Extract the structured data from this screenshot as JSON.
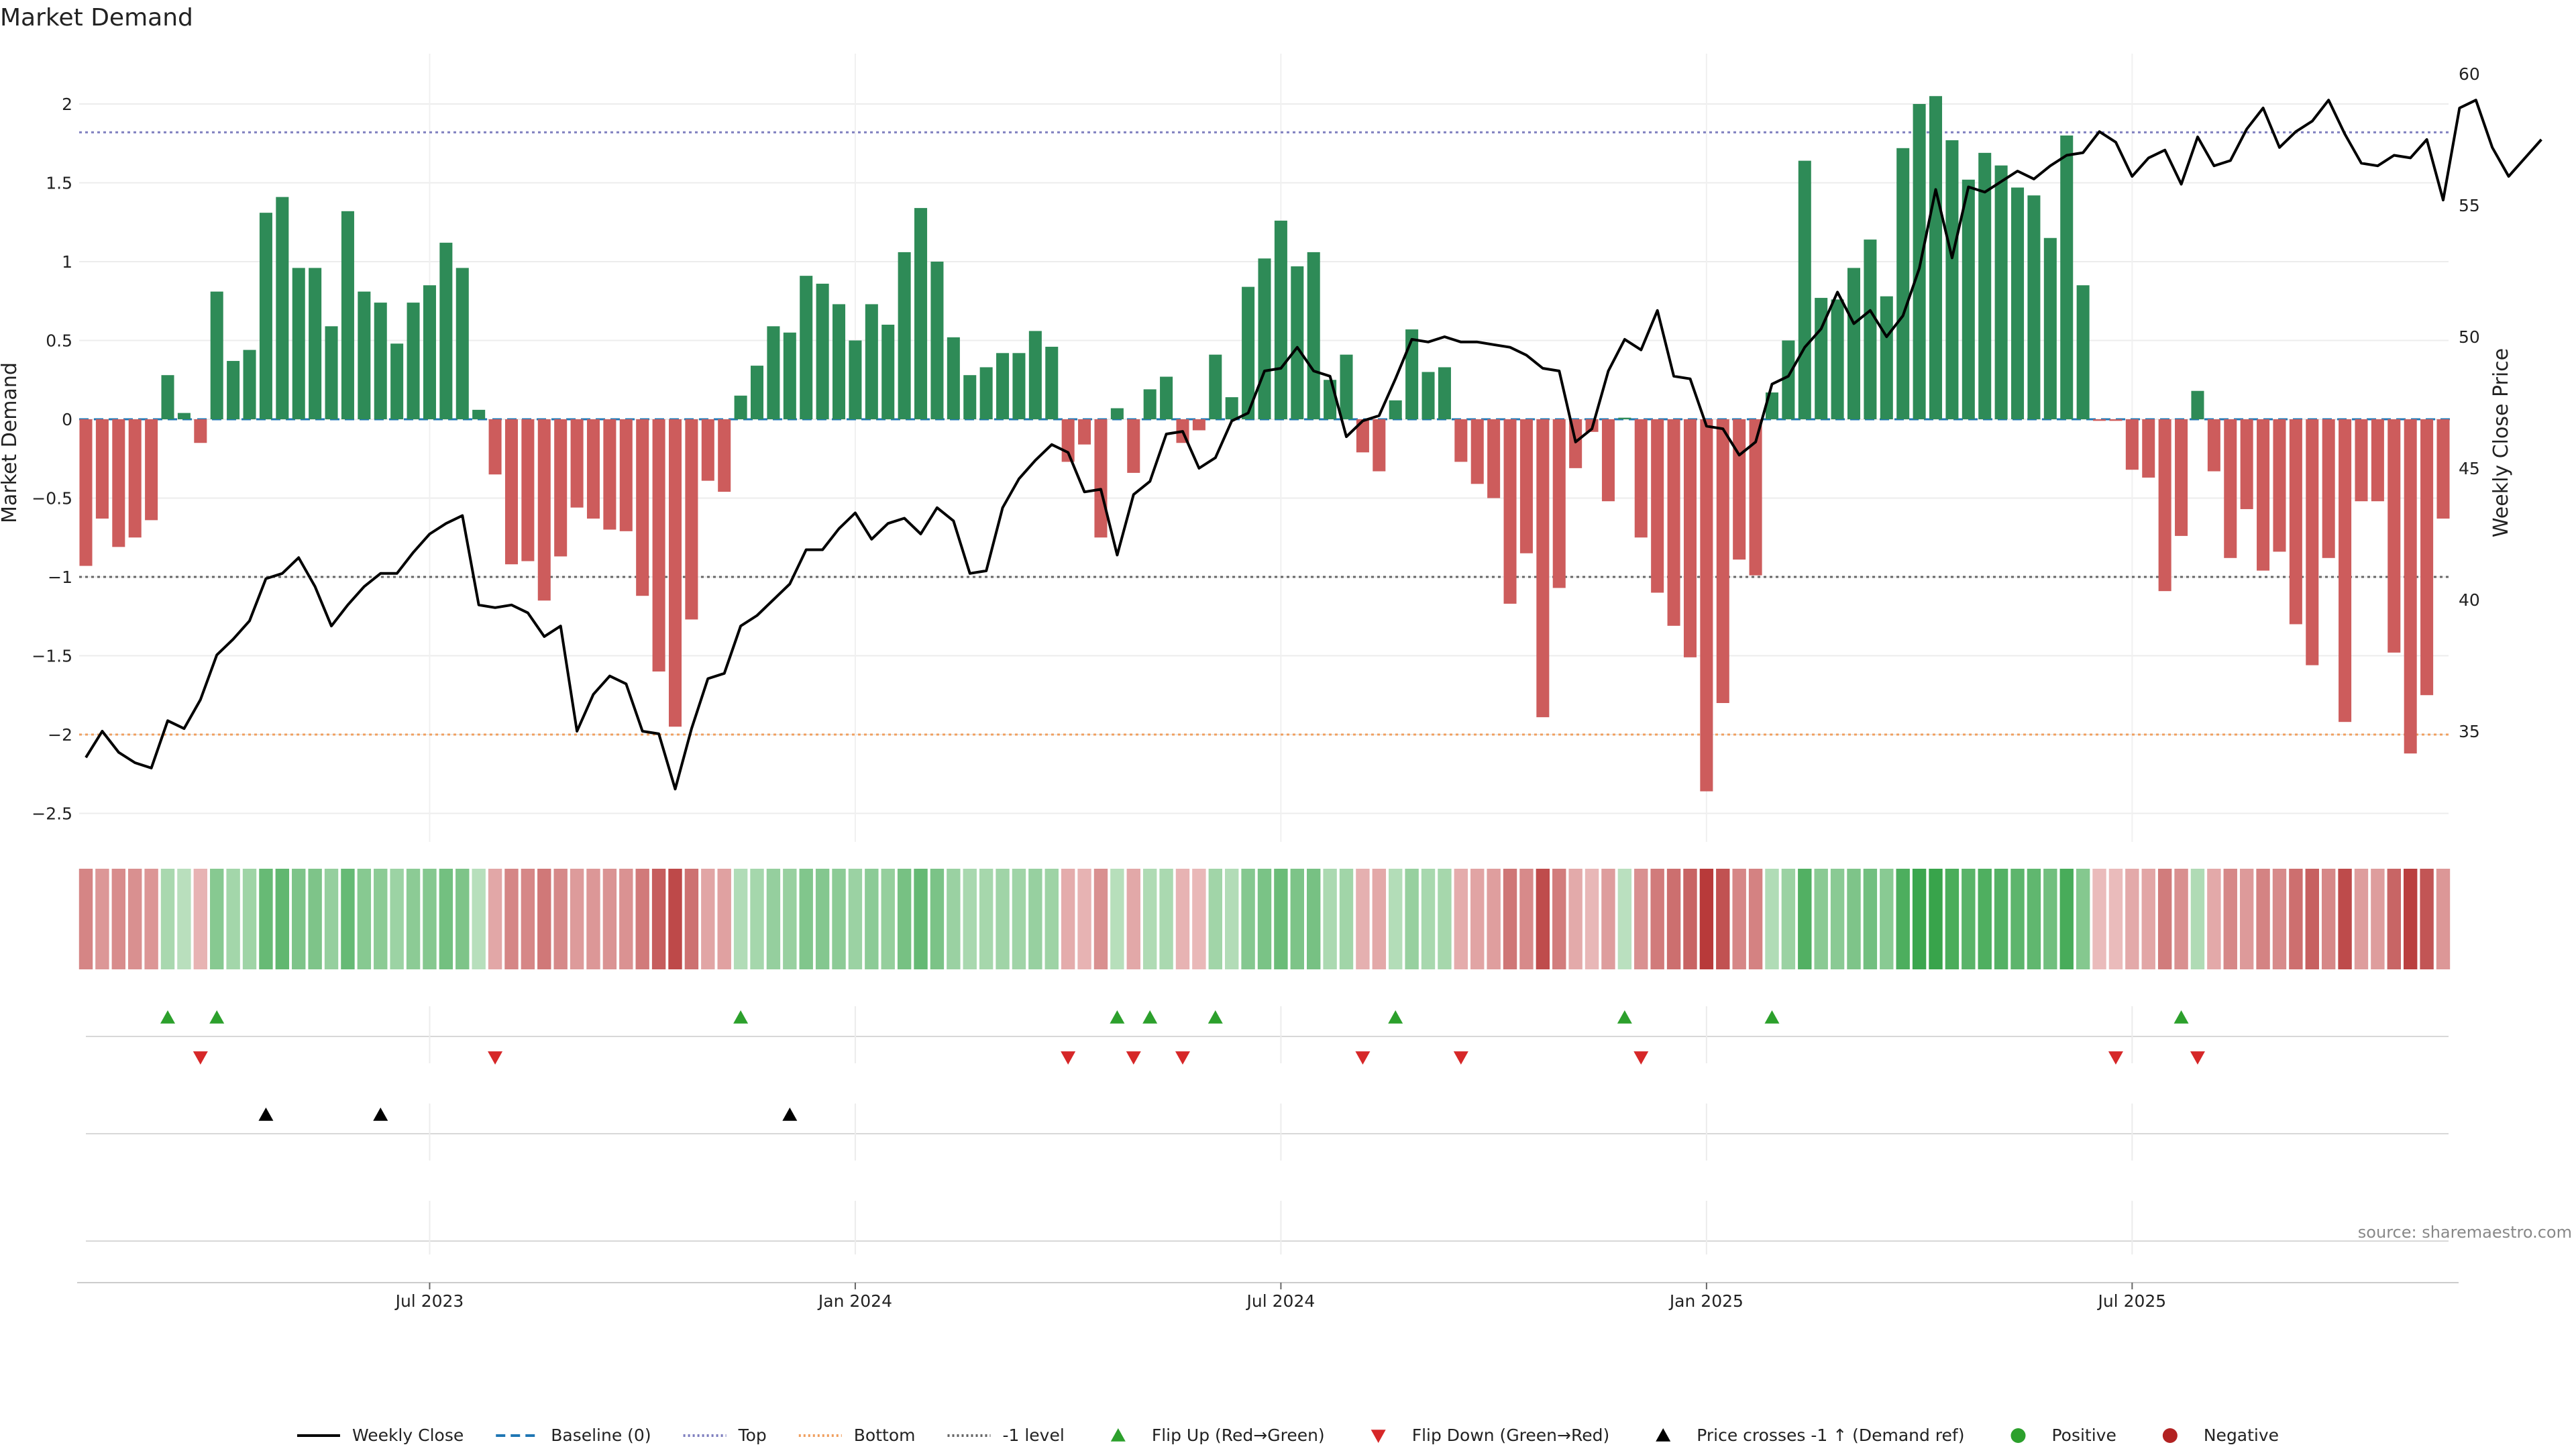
{
  "chart_data": {
    "type": "bar",
    "title": "Market Demand",
    "ylabel": "Market Demand",
    "y2label": "Weekly Close Price",
    "ylim": [
      -2.5,
      2.2
    ],
    "y2lim": [
      31.5,
      60
    ],
    "yticks": [
      2,
      1.5,
      1,
      0.5,
      0,
      -0.5,
      -1,
      -1.5,
      -2,
      -2.5
    ],
    "yticklabels": [
      "2",
      "1.5",
      "1",
      "0.5",
      "0",
      "−0.5",
      "−1",
      "−1.5",
      "−2",
      "−2.5"
    ],
    "y2ticks": [
      60,
      55,
      50,
      45,
      40,
      35
    ],
    "x_ticks": [
      {
        "label": "Jul 2023",
        "index": 21
      },
      {
        "label": "Jan 2024",
        "index": 47
      },
      {
        "label": "Jul 2024",
        "index": 73
      },
      {
        "label": "Jan 2025",
        "index": 99
      },
      {
        "label": "Jul 2025",
        "index": 125
      }
    ],
    "reference_lines": [
      {
        "name": "Top",
        "value": 1.82,
        "color": "#7f7fbf",
        "style": "dotted"
      },
      {
        "name": "Bottom",
        "value": -2.0,
        "color": "#f0a060",
        "style": "dotted"
      },
      {
        "name": "-1 level",
        "value": -1.0,
        "color": "#666666",
        "style": "dotted"
      },
      {
        "name": "Baseline (0)",
        "value": 0,
        "color": "#1f77b4",
        "style": "dashed"
      }
    ],
    "colors": {
      "positive": "#2e8b57",
      "negative": "#cd5c5c",
      "close": "#000000",
      "flip_up": "#2ca02c",
      "flip_down": "#d62728",
      "cross": "#000000"
    },
    "demand": [
      -0.93,
      -0.63,
      -0.81,
      -0.75,
      -0.64,
      0.28,
      0.04,
      -0.15,
      0.81,
      0.37,
      0.44,
      1.31,
      1.41,
      0.96,
      0.96,
      0.59,
      1.32,
      0.81,
      0.74,
      0.48,
      0.74,
      0.85,
      1.12,
      0.96,
      0.06,
      -0.35,
      -0.92,
      -0.9,
      -1.15,
      -0.87,
      -0.56,
      -0.63,
      -0.7,
      -0.71,
      -1.12,
      -1.6,
      -1.95,
      -1.27,
      -0.39,
      -0.46,
      0.15,
      0.34,
      0.59,
      0.55,
      0.91,
      0.86,
      0.73,
      0.5,
      0.73,
      0.6,
      1.06,
      1.34,
      1.0,
      0.52,
      0.28,
      0.33,
      0.42,
      0.42,
      0.56,
      0.46,
      -0.27,
      -0.16,
      -0.75,
      0.07,
      -0.34,
      0.19,
      0.27,
      -0.15,
      -0.07,
      0.41,
      0.14,
      0.84,
      1.02,
      1.26,
      0.97,
      1.06,
      0.25,
      0.41,
      -0.21,
      -0.33,
      0.12,
      0.57,
      0.3,
      0.33,
      -0.27,
      -0.41,
      -0.5,
      -1.17,
      -0.85,
      -1.89,
      -1.07,
      -0.31,
      -0.08,
      -0.52,
      0.01,
      -0.75,
      -1.1,
      -1.31,
      -1.51,
      -2.36,
      -1.8,
      -0.89,
      -0.99,
      0.17,
      0.5,
      1.64,
      0.77,
      0.76,
      0.96,
      1.14,
      0.78,
      1.72,
      2.0,
      2.05,
      1.77,
      1.52,
      1.69,
      1.61,
      1.47,
      1.42,
      1.15,
      1.8,
      0.85,
      -0.01,
      -0.01,
      -0.32,
      -0.37,
      -1.09,
      -0.74,
      0.18,
      -0.33,
      -0.88,
      -0.57,
      -0.96,
      -0.84,
      -1.3,
      -1.56,
      -0.88,
      -1.92,
      -0.52,
      -0.52,
      -1.48,
      -2.12,
      -1.75,
      -0.63
    ],
    "close": [
      34.0,
      35.0,
      34.2,
      33.8,
      33.6,
      35.4,
      35.1,
      36.2,
      37.9,
      38.5,
      39.2,
      40.8,
      41.0,
      41.6,
      40.5,
      39.0,
      39.8,
      40.5,
      41.0,
      41.0,
      41.8,
      42.5,
      42.9,
      43.2,
      39.8,
      39.7,
      39.8,
      39.5,
      38.6,
      39.0,
      35.0,
      36.4,
      37.1,
      36.8,
      35.0,
      34.9,
      32.8,
      35.1,
      37.0,
      37.2,
      39.0,
      39.4,
      40.0,
      40.6,
      41.9,
      41.9,
      42.7,
      43.3,
      42.3,
      42.9,
      43.1,
      42.5,
      43.5,
      43.0,
      41.0,
      41.1,
      43.5,
      44.6,
      45.3,
      45.9,
      45.6,
      44.1,
      44.2,
      41.7,
      44.0,
      44.5,
      46.3,
      46.4,
      45.0,
      45.4,
      46.8,
      47.1,
      48.7,
      48.8,
      49.6,
      48.7,
      48.5,
      46.2,
      46.8,
      47.0,
      48.4,
      49.9,
      49.8,
      50.0,
      49.8,
      49.8,
      49.7,
      49.6,
      49.3,
      48.8,
      48.7,
      46.0,
      46.5,
      48.7,
      49.9,
      49.5,
      51.0,
      48.5,
      48.4,
      46.6,
      46.5,
      45.5,
      46.0,
      48.2,
      48.5,
      49.6,
      50.3,
      51.7,
      50.5,
      51.0,
      50.0,
      50.8,
      52.6,
      55.6,
      53.0,
      55.7,
      55.5,
      55.9,
      56.3,
      56.0,
      56.5,
      56.9,
      57.0,
      57.8,
      57.4,
      56.1,
      56.8,
      57.1,
      55.8,
      57.6,
      56.5,
      56.7,
      57.9,
      58.7,
      57.2,
      57.8,
      58.2,
      59.0,
      57.7,
      56.6,
      56.5,
      56.9,
      56.8,
      57.5,
      55.2,
      58.7,
      59.0,
      57.2,
      56.1,
      56.8,
      57.5
    ]
  },
  "markers": {
    "flip_up": [
      5,
      8,
      40,
      63,
      65,
      69,
      80,
      94,
      103,
      128
    ],
    "flip_down": [
      7,
      25,
      60,
      64,
      67,
      78,
      84,
      95,
      124,
      129
    ],
    "cross_up": [
      11,
      18,
      43
    ]
  },
  "legend": {
    "items": [
      {
        "label": "Weekly Close",
        "kind": "line",
        "color": "#000000",
        "dash": "none"
      },
      {
        "label": "Baseline (0)",
        "kind": "line",
        "color": "#1f77b4",
        "dash": "14,8"
      },
      {
        "label": "Top",
        "kind": "line",
        "color": "#7f7fbf",
        "dash": "3,4"
      },
      {
        "label": "Bottom",
        "kind": "line",
        "color": "#f0a060",
        "dash": "3,4"
      },
      {
        "label": "-1 level",
        "kind": "line",
        "color": "#666666",
        "dash": "3,4"
      },
      {
        "label": "Flip Up (Red→Green)",
        "kind": "tri-up",
        "color": "#2ca02c"
      },
      {
        "label": "Flip Down (Green→Red)",
        "kind": "tri-down",
        "color": "#d62728"
      },
      {
        "label": "Price crosses -1 ↑ (Demand ref)",
        "kind": "tri-up",
        "color": "#000000"
      },
      {
        "label": "Positive",
        "kind": "dot",
        "color": "#2ca02c"
      },
      {
        "label": "Negative",
        "kind": "dot",
        "color": "#b22222"
      }
    ]
  },
  "source": "source: sharemaestro.com"
}
